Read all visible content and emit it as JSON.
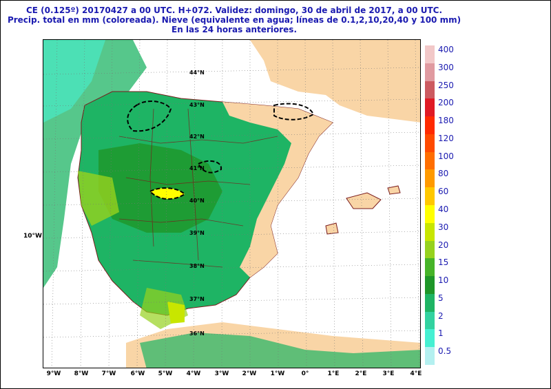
{
  "title": {
    "line1": "CE (0.125º) 20170427 a 00 UTC.  H+072. Validez: domingo, 30 de abril de 2017,  a  00 UTC.",
    "line2": "Precip. total en mm (coloreada). Nieve (equivalente en agua; líneas de 0.1,2,10,20,40 y 100 mm)",
    "line3": "En las 24 horas anteriores."
  },
  "map": {
    "lat_labels": [
      "44°N",
      "43°N",
      "42°N",
      "41°N",
      "40°N",
      "39°N",
      "38°N",
      "37°N",
      "36°N"
    ],
    "lon_labels": [
      "9°W",
      "8°W",
      "7°W",
      "6°W",
      "5°W",
      "4°W",
      "3°W",
      "2°W",
      "1°W",
      "0°",
      "1°E",
      "2°E",
      "3°E",
      "4°E"
    ],
    "side_label": "10°W",
    "colors": {
      "land": "#f9d5a6",
      "sea": "#ffffff",
      "border": "#7a1a1a"
    }
  },
  "legend": {
    "labels": [
      "400",
      "300",
      "250",
      "200",
      "180",
      "120",
      "100",
      "80",
      "60",
      "40",
      "30",
      "20",
      "15",
      "10",
      "5",
      "2",
      "1",
      "0.5"
    ],
    "colors": [
      "#f2c8c8",
      "#e09aa0",
      "#cc5a60",
      "#e01a24",
      "#ff2a00",
      "#ff4a00",
      "#ff6e00",
      "#ff9a00",
      "#ffc800",
      "#ffff00",
      "#c8e600",
      "#96d21e",
      "#46b428",
      "#1e9628",
      "#1eb464",
      "#32d2a0",
      "#46f0d2",
      "#b4f0f0"
    ]
  }
}
